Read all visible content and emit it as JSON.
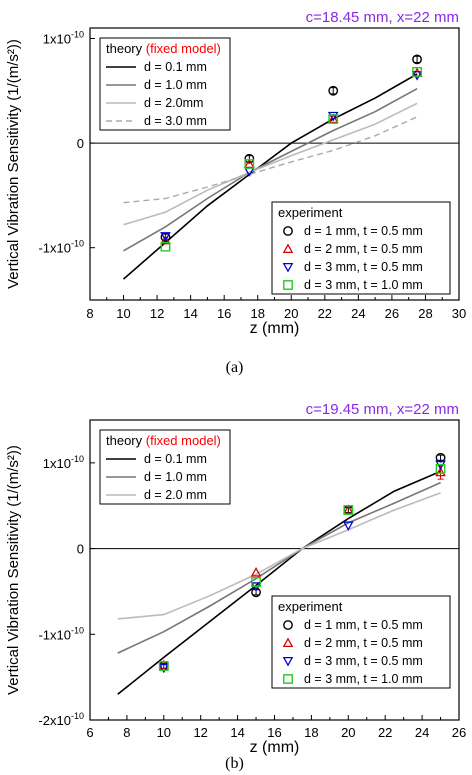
{
  "chart_data": [
    {
      "type": "line",
      "panel_label": "(a)",
      "corner_title": "c=18.45 mm, x=22 mm",
      "xlabel": "z (mm)",
      "ylabel": "Vertical Vibration Sensitivity (1/(m/s²))",
      "xlim": [
        8,
        30
      ],
      "ylim": [
        -1.5e-10,
        1.1e-10
      ],
      "xticks": [
        "8",
        "10",
        "12",
        "14",
        "16",
        "18",
        "20",
        "22",
        "24",
        "26",
        "28",
        "30"
      ],
      "yticks": [
        {
          "value": 1e-10,
          "label": "1x10",
          "exp": "-10"
        },
        {
          "value": 0,
          "label": "0",
          "exp": ""
        },
        {
          "value": -1e-10,
          "label": "-1x10",
          "exp": "-10"
        }
      ],
      "legend_theory": {
        "title": "theory",
        "title_note": "(fixed model)",
        "position": "top-left"
      },
      "legend_experiment": {
        "title": "experiment",
        "position": "bottom-right"
      },
      "theory_series": [
        {
          "name": "d = 0.1 mm",
          "color": "#000000",
          "dash": "",
          "width": 1.6,
          "x": [
            10,
            12.5,
            15,
            17.5,
            20,
            22.5,
            25,
            27.5
          ],
          "y": [
            -1.3e-10,
            -9.5e-11,
            -6e-11,
            -3e-11,
            0.0,
            2.3e-11,
            4.3e-11,
            6.6e-11
          ]
        },
        {
          "name": "d = 1.0 mm",
          "color": "#777777",
          "dash": "",
          "width": 1.6,
          "x": [
            10,
            12.5,
            15,
            17.5,
            20,
            22.5,
            25,
            27.5
          ],
          "y": [
            -1.03e-10,
            -8e-11,
            -5.3e-11,
            -2.8e-11,
            -8e-12,
            1.2e-11,
            3e-11,
            5.2e-11
          ]
        },
        {
          "name": "d = 2.0mm",
          "color": "#bbbbbb",
          "dash": "",
          "width": 1.6,
          "x": [
            10,
            12.5,
            15,
            17.5,
            20,
            22.5,
            25,
            27.5
          ],
          "y": [
            -7.8e-11,
            -6.6e-11,
            -4.5e-11,
            -2.8e-11,
            -1.2e-11,
            3e-12,
            1.8e-11,
            3.8e-11
          ]
        },
        {
          "name": "d = 3.0 mm",
          "color": "#aaaaaa",
          "dash": "6,4",
          "width": 1.4,
          "x": [
            10,
            12.5,
            15,
            17.5,
            20,
            22.5,
            25,
            27.5
          ],
          "y": [
            -5.7e-11,
            -5.3e-11,
            -4.2e-11,
            -3e-11,
            -1.8e-11,
            -7e-12,
            7e-12,
            2.5e-11
          ]
        }
      ],
      "experiment_series": [
        {
          "name": "d = 1 mm, t = 0.5 mm",
          "marker": "circle",
          "color": "#000000",
          "x": [
            12.5,
            17.5,
            22.5,
            27.5
          ],
          "y": [
            -9e-11,
            -1.5e-11,
            5e-11,
            8e-11
          ],
          "err": [
            3e-12,
            3e-12,
            3e-12,
            3e-12
          ]
        },
        {
          "name": "d = 2 mm, t = 0.5 mm",
          "marker": "triangle-up",
          "color": "#dd0000",
          "x": [
            12.5,
            17.5,
            22.5,
            27.5
          ],
          "y": [
            -9.3e-11,
            -2e-11,
            2.3e-11,
            6.7e-11
          ],
          "err": [
            0,
            0,
            0,
            0
          ]
        },
        {
          "name": "d = 3 mm, t = 0.5 mm",
          "marker": "triangle-down",
          "color": "#0000dd",
          "x": [
            12.5,
            17.5,
            22.5,
            27.5
          ],
          "y": [
            -8.9e-11,
            -2.7e-11,
            2.6e-11,
            6.5e-11
          ],
          "err": [
            0,
            0,
            0,
            0
          ]
        },
        {
          "name": "d = 3 mm, t = 1.0 mm",
          "marker": "square",
          "color": "#22cc22",
          "x": [
            12.5,
            17.5,
            22.5,
            27.5
          ],
          "y": [
            -9.9e-11,
            -2e-11,
            2.3e-11,
            6.8e-11
          ],
          "err": [
            0,
            0,
            0,
            0
          ]
        }
      ],
      "colors": {
        "title": "#8a2be2",
        "title_note": "#ff0000"
      }
    },
    {
      "type": "line",
      "panel_label": "(b)",
      "corner_title": "c=19.45 mm, x=22 mm",
      "xlabel": "z (mm)",
      "ylabel": "Vertical Vibration Sensitivity (1/(m/s²))",
      "xlim": [
        6,
        26
      ],
      "ylim": [
        -2e-10,
        1.5e-10
      ],
      "xticks": [
        "6",
        "8",
        "10",
        "12",
        "14",
        "16",
        "18",
        "20",
        "22",
        "24",
        "26"
      ],
      "yticks": [
        {
          "value": 1e-10,
          "label": "1x10",
          "exp": "-10"
        },
        {
          "value": 0,
          "label": "0",
          "exp": ""
        },
        {
          "value": -1e-10,
          "label": "-1x10",
          "exp": "-10"
        },
        {
          "value": -2e-10,
          "label": "-2x10",
          "exp": "-10"
        }
      ],
      "legend_theory": {
        "title": "theory",
        "title_note": "(fixed model)",
        "position": "top-left"
      },
      "legend_experiment": {
        "title": "experiment",
        "position": "bottom-right"
      },
      "theory_series": [
        {
          "name": "d = 0.1 mm",
          "color": "#000000",
          "dash": "",
          "width": 1.6,
          "x": [
            7.5,
            10,
            12.5,
            15,
            17.5,
            20,
            22.5,
            25
          ],
          "y": [
            -1.7e-10,
            -1.27e-10,
            -8.5e-11,
            -4.3e-11,
            0.0,
            3.5e-11,
            6.7e-11,
            9e-11
          ]
        },
        {
          "name": "d = 1.0 mm",
          "color": "#777777",
          "dash": "",
          "width": 1.6,
          "x": [
            7.5,
            10,
            12.5,
            15,
            17.5,
            20,
            22.5,
            25
          ],
          "y": [
            -1.22e-10,
            -9.7e-11,
            -6.7e-11,
            -3.5e-11,
            0.0,
            3e-11,
            5.3e-11,
            7.7e-11
          ]
        },
        {
          "name": "d = 2.0 mm",
          "color": "#bbbbbb",
          "dash": "",
          "width": 1.6,
          "x": [
            7.5,
            10,
            12.5,
            15,
            17.5,
            20,
            22.5,
            25
          ],
          "y": [
            -8.2e-11,
            -7.7e-11,
            -5.5e-11,
            -3e-11,
            0.0,
            2.2e-11,
            4.5e-11,
            6.5e-11
          ]
        }
      ],
      "experiment_series": [
        {
          "name": "d = 1 mm, t = 0.5 mm",
          "marker": "circle",
          "color": "#000000",
          "x": [
            10,
            15,
            20,
            25
          ],
          "y": [
            -1.37e-10,
            -5.1e-11,
            4.5e-11,
            1.06e-10
          ],
          "err": [
            3e-12,
            3e-12,
            3e-12,
            3e-12
          ]
        },
        {
          "name": "d = 2 mm, t = 0.5 mm",
          "marker": "triangle-up",
          "color": "#dd0000",
          "x": [
            10,
            15,
            20,
            25
          ],
          "y": [
            -1.36e-10,
            -2.8e-11,
            4.5e-11,
            8.9e-11
          ],
          "err": [
            0,
            0,
            0,
            8e-12
          ]
        },
        {
          "name": "d = 3 mm, t = 0.5 mm",
          "marker": "triangle-down",
          "color": "#0000dd",
          "x": [
            10,
            15,
            20,
            25
          ],
          "y": [
            -1.39e-10,
            -4.4e-11,
            2.7e-11,
            9.8e-11
          ],
          "err": [
            0,
            0,
            0,
            0
          ]
        },
        {
          "name": "d = 3 mm, t = 1.0 mm",
          "marker": "square",
          "color": "#22cc22",
          "x": [
            10,
            15,
            20,
            25
          ],
          "y": [
            -1.37e-10,
            -3.9e-11,
            4.5e-11,
            9.3e-11
          ],
          "err": [
            0,
            0,
            0,
            0
          ]
        }
      ],
      "colors": {
        "title": "#8a2be2",
        "title_note": "#ff0000"
      }
    }
  ]
}
